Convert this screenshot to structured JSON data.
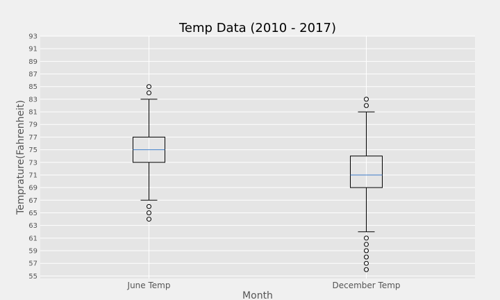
{
  "chart_data": {
    "type": "boxplot",
    "title": "Temp Data (2010 - 2017)",
    "xlabel": "Month",
    "ylabel": "Temprature(Fahrenheit)",
    "ylim": [
      54.6,
      93
    ],
    "yticks": [
      55,
      57,
      59,
      61,
      63,
      65,
      67,
      69,
      71,
      73,
      75,
      77,
      79,
      81,
      83,
      85,
      87,
      89,
      91,
      93
    ],
    "grid": true,
    "categories": [
      "June Temp",
      "December Temp"
    ],
    "boxes": [
      {
        "category": "June Temp",
        "whisker_low": 67,
        "q1": 73,
        "median": 75,
        "q3": 77,
        "whisker_high": 83,
        "outliers": [
          64,
          65,
          66,
          84,
          85
        ]
      },
      {
        "category": "December Temp",
        "whisker_low": 62,
        "q1": 69,
        "median": 71,
        "q3": 74,
        "whisker_high": 81,
        "outliers": [
          56,
          57,
          58,
          59,
          60,
          61,
          82,
          83
        ]
      }
    ],
    "colors": {
      "figure_bg": "#f0f0f0",
      "plot_bg": "#e5e5e5",
      "grid": "#ffffff",
      "median": "#3d7cc9",
      "box_edge": "#000000"
    }
  }
}
